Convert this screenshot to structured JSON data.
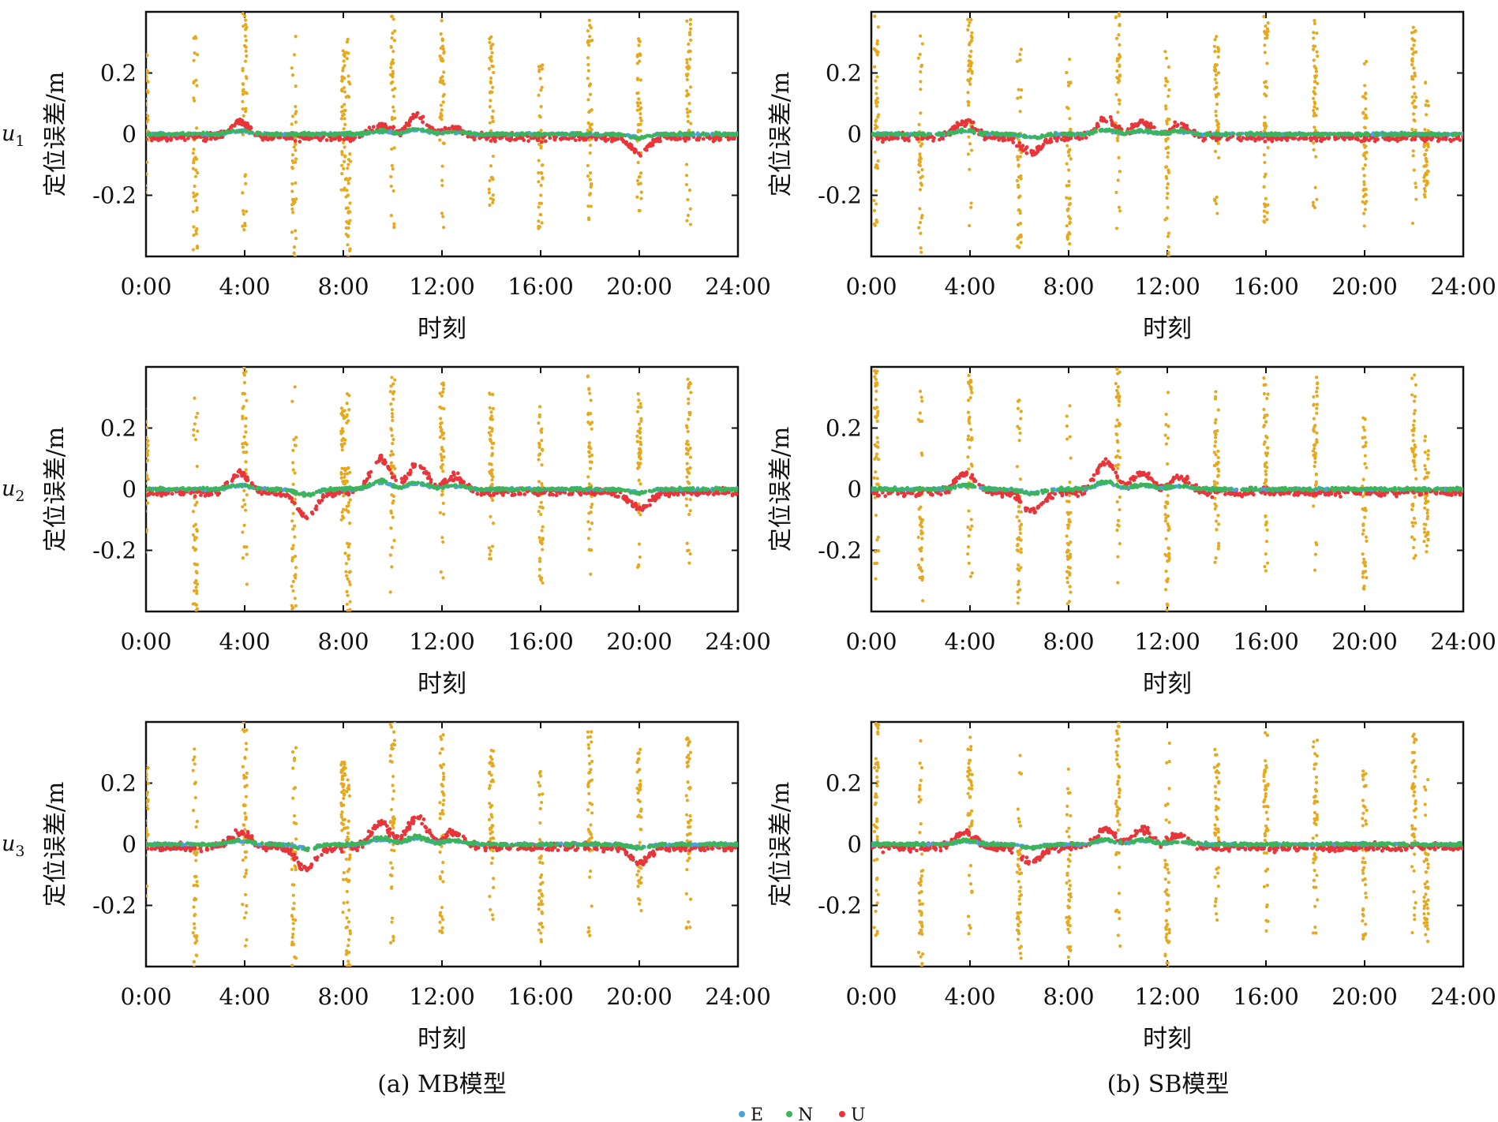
{
  "figure": {
    "captions": [
      "(a) MB模型",
      "(b) SB模型"
    ],
    "row_labels": [
      {
        "base": "u",
        "sub": "1"
      },
      {
        "base": "u",
        "sub": "2"
      },
      {
        "base": "u",
        "sub": "3"
      }
    ],
    "legend": [
      {
        "label": "E",
        "color": "#4aa3df"
      },
      {
        "label": "N",
        "color": "#3cb55a"
      },
      {
        "label": "U",
        "color": "#e8353a"
      }
    ],
    "outlier_color": "#e6a91e"
  },
  "chart_data": [
    {
      "id": "mb-u1",
      "type": "scatter",
      "model": "MB模型",
      "station": "u1",
      "xlabel": "时刻",
      "ylabel": "定位误差/m",
      "xlim": [
        0,
        24
      ],
      "ylim": [
        -0.4,
        0.4
      ],
      "xtick_labels": [
        "0:00",
        "4:00",
        "8:00",
        "12:00",
        "16:00",
        "20:00",
        "24:00"
      ],
      "ytick_labels": [
        "-0.2",
        "0",
        "0.2"
      ],
      "ytick_values": [
        -0.2,
        0,
        0.2
      ],
      "series": [
        {
          "name": "E"
        },
        {
          "name": "N"
        },
        {
          "name": "U"
        }
      ],
      "u_bumps": [
        [
          3.8,
          0.05
        ],
        [
          9.5,
          0.04
        ],
        [
          11,
          0.07
        ],
        [
          12.5,
          0.03
        ],
        [
          20,
          -0.05
        ]
      ],
      "outlier_spikes": [
        [
          0,
          0.15
        ],
        [
          2,
          -0.3
        ],
        [
          4,
          0.3
        ],
        [
          6,
          -0.3
        ],
        [
          8,
          0.15
        ],
        [
          8.2,
          -0.3
        ],
        [
          10,
          0.3
        ],
        [
          12,
          0.25
        ],
        [
          14,
          0.2
        ],
        [
          16,
          -0.2
        ],
        [
          18,
          0.25
        ],
        [
          20,
          0.2
        ],
        [
          22,
          0.25
        ]
      ]
    },
    {
      "id": "sb-u1",
      "type": "scatter",
      "model": "SB模型",
      "station": "u1",
      "xlabel": "时刻",
      "ylabel": "定位误差/m",
      "xlim": [
        0,
        24
      ],
      "ylim": [
        -0.4,
        0.4
      ],
      "xtick_labels": [
        "0:00",
        "4:00",
        "8:00",
        "12:00",
        "16:00",
        "20:00",
        "24:00"
      ],
      "ytick_labels": [
        "-0.2",
        "0",
        "0.2"
      ],
      "ytick_values": [
        -0.2,
        0,
        0.2
      ],
      "series": [
        {
          "name": "E"
        },
        {
          "name": "N"
        },
        {
          "name": "U"
        }
      ],
      "u_bumps": [
        [
          3.8,
          0.05
        ],
        [
          6.5,
          -0.05
        ],
        [
          9.5,
          0.06
        ],
        [
          11,
          0.05
        ],
        [
          12.5,
          0.04
        ]
      ],
      "outlier_spikes": [
        [
          0.2,
          0.3
        ],
        [
          2,
          -0.3
        ],
        [
          4,
          0.25
        ],
        [
          6,
          -0.25
        ],
        [
          8,
          -0.25
        ],
        [
          10,
          0.3
        ],
        [
          12,
          -0.3
        ],
        [
          14,
          0.2
        ],
        [
          16,
          0.25
        ],
        [
          18,
          0.25
        ],
        [
          20,
          -0.2
        ],
        [
          22,
          0.25
        ],
        [
          22.5,
          -0.1
        ]
      ]
    },
    {
      "id": "mb-u2",
      "type": "scatter",
      "model": "MB模型",
      "station": "u2",
      "xlabel": "时刻",
      "ylabel": "定位误差/m",
      "xlim": [
        0,
        24
      ],
      "ylim": [
        -0.4,
        0.4
      ],
      "xtick_labels": [
        "0:00",
        "4:00",
        "8:00",
        "12:00",
        "16:00",
        "20:00",
        "24:00"
      ],
      "ytick_labels": [
        "-0.2",
        "0",
        "0.2"
      ],
      "ytick_values": [
        -0.2,
        0,
        0.2
      ],
      "series": [
        {
          "name": "E"
        },
        {
          "name": "N"
        },
        {
          "name": "U"
        }
      ],
      "u_bumps": [
        [
          3.8,
          0.06
        ],
        [
          6.5,
          -0.08
        ],
        [
          9.5,
          0.11
        ],
        [
          11,
          0.09
        ],
        [
          12.5,
          0.05
        ],
        [
          20,
          -0.05
        ]
      ],
      "outlier_spikes": [
        [
          0,
          0.15
        ],
        [
          2,
          -0.3
        ],
        [
          4,
          0.3
        ],
        [
          6,
          -0.3
        ],
        [
          8,
          0.15
        ],
        [
          8.2,
          -0.3
        ],
        [
          10,
          0.3
        ],
        [
          12,
          0.25
        ],
        [
          14,
          0.2
        ],
        [
          16,
          -0.2
        ],
        [
          18,
          0.25
        ],
        [
          20,
          0.2
        ],
        [
          22,
          0.25
        ]
      ]
    },
    {
      "id": "sb-u2",
      "type": "scatter",
      "model": "SB模型",
      "station": "u2",
      "xlabel": "时刻",
      "ylabel": "定位误差/m",
      "xlim": [
        0,
        24
      ],
      "ylim": [
        -0.4,
        0.4
      ],
      "xtick_labels": [
        "0:00",
        "4:00",
        "8:00",
        "12:00",
        "16:00",
        "20:00",
        "24:00"
      ],
      "ytick_labels": [
        "-0.2",
        "0",
        "0.2"
      ],
      "ytick_values": [
        -0.2,
        0,
        0.2
      ],
      "series": [
        {
          "name": "E"
        },
        {
          "name": "N"
        },
        {
          "name": "U"
        }
      ],
      "u_bumps": [
        [
          3.8,
          0.06
        ],
        [
          6.5,
          -0.06
        ],
        [
          9.5,
          0.1
        ],
        [
          11,
          0.06
        ],
        [
          12.5,
          0.05
        ]
      ],
      "outlier_spikes": [
        [
          0.2,
          0.3
        ],
        [
          2,
          -0.3
        ],
        [
          4,
          0.25
        ],
        [
          6,
          -0.25
        ],
        [
          8,
          -0.25
        ],
        [
          10,
          0.3
        ],
        [
          12,
          -0.3
        ],
        [
          14,
          0.2
        ],
        [
          16,
          0.25
        ],
        [
          18,
          0.25
        ],
        [
          20,
          -0.2
        ],
        [
          22,
          0.25
        ],
        [
          22.5,
          -0.1
        ]
      ]
    },
    {
      "id": "mb-u3",
      "type": "scatter",
      "model": "MB模型",
      "station": "u3",
      "xlabel": "时刻",
      "ylabel": "定位误差/m",
      "xlim": [
        0,
        24
      ],
      "ylim": [
        -0.4,
        0.4
      ],
      "xtick_labels": [
        "0:00",
        "4:00",
        "8:00",
        "12:00",
        "16:00",
        "20:00",
        "24:00"
      ],
      "ytick_labels": [
        "-0.2",
        "0",
        "0.2"
      ],
      "ytick_values": [
        -0.2,
        0,
        0.2
      ],
      "series": [
        {
          "name": "E"
        },
        {
          "name": "N"
        },
        {
          "name": "U"
        }
      ],
      "u_bumps": [
        [
          3.8,
          0.05
        ],
        [
          6.5,
          -0.07
        ],
        [
          9.5,
          0.08
        ],
        [
          11,
          0.1
        ],
        [
          12.5,
          0.05
        ],
        [
          20,
          -0.05
        ]
      ],
      "outlier_spikes": [
        [
          0,
          0.15
        ],
        [
          2,
          -0.3
        ],
        [
          4,
          0.3
        ],
        [
          6,
          -0.3
        ],
        [
          8,
          0.15
        ],
        [
          8.2,
          -0.3
        ],
        [
          10,
          0.3
        ],
        [
          12,
          0.25
        ],
        [
          14,
          0.2
        ],
        [
          16,
          -0.2
        ],
        [
          18,
          0.25
        ],
        [
          20,
          0.2
        ],
        [
          22,
          0.25
        ]
      ]
    },
    {
      "id": "sb-u3",
      "type": "scatter",
      "model": "SB模型",
      "station": "u3",
      "xlabel": "时刻",
      "ylabel": "定位误差/m",
      "xlim": [
        0,
        24
      ],
      "ylim": [
        -0.4,
        0.4
      ],
      "xtick_labels": [
        "0:00",
        "4:00",
        "8:00",
        "12:00",
        "16:00",
        "20:00",
        "24:00"
      ],
      "ytick_labels": [
        "-0.2",
        "0",
        "0.2"
      ],
      "ytick_values": [
        -0.2,
        0,
        0.2
      ],
      "series": [
        {
          "name": "E"
        },
        {
          "name": "N"
        },
        {
          "name": "U"
        }
      ],
      "u_bumps": [
        [
          3.8,
          0.05
        ],
        [
          6.5,
          -0.05
        ],
        [
          9.5,
          0.06
        ],
        [
          11,
          0.06
        ],
        [
          12.5,
          0.04
        ]
      ],
      "outlier_spikes": [
        [
          0.2,
          0.3
        ],
        [
          2,
          -0.3
        ],
        [
          4,
          0.25
        ],
        [
          6,
          -0.25
        ],
        [
          8,
          -0.25
        ],
        [
          10,
          0.3
        ],
        [
          12,
          -0.3
        ],
        [
          14,
          0.2
        ],
        [
          16,
          0.25
        ],
        [
          18,
          0.25
        ],
        [
          20,
          -0.2
        ],
        [
          22,
          0.25
        ],
        [
          22.5,
          -0.2
        ]
      ]
    }
  ]
}
